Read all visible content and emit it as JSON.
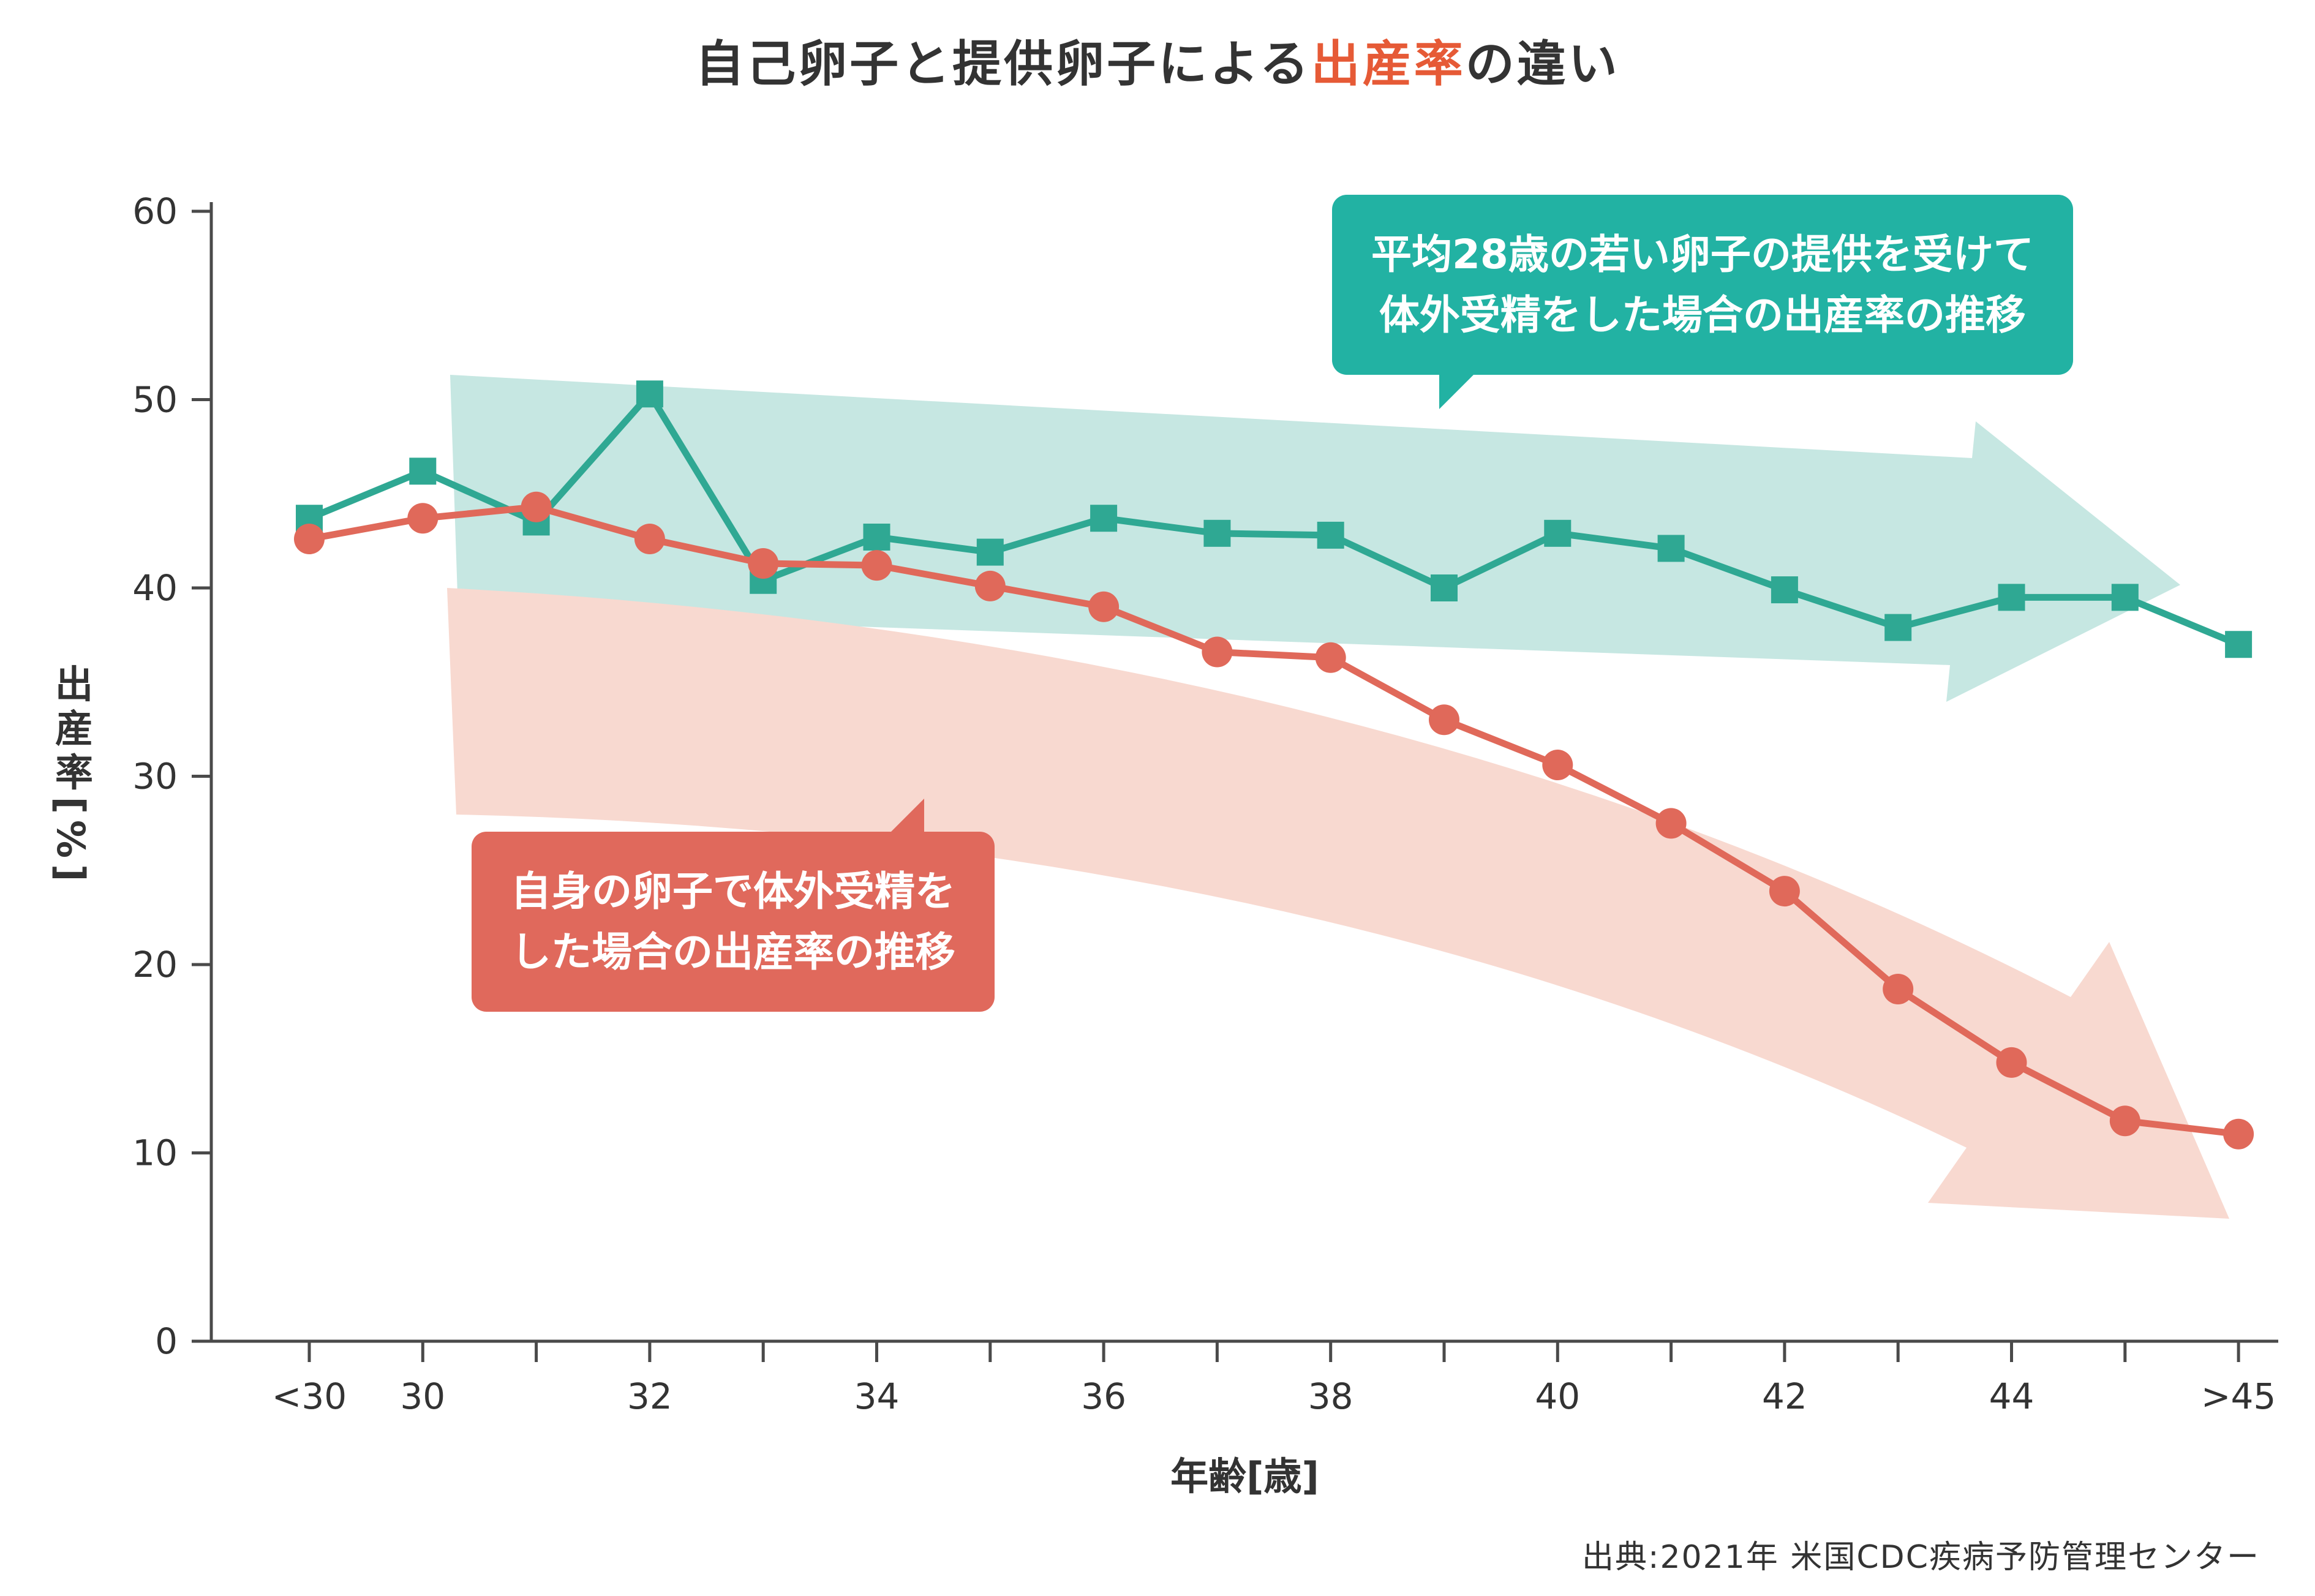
{
  "title": {
    "prefix": "自己卵子と提供卵子による",
    "highlight": "出産率",
    "suffix": "の違い"
  },
  "annotations": {
    "donor": {
      "line1": "平均28歳の若い卵子の提供を受けて",
      "line2": "体外受精をした場合の出産率の推移"
    },
    "own": {
      "line1": "自身の卵子で体外受精を",
      "line2": "した場合の出産率の推移"
    }
  },
  "source": "出典:2021年 米国CDC疾病予防管理センター",
  "colors": {
    "teal_series": "#2fa893",
    "red_series": "#e0695a",
    "teal_bubble": "#22b2a3",
    "red_bubble": "#e0695c",
    "accent_orange": "#e65a36",
    "teal_arrow": "#c6e7e2",
    "pink_arrow": "#f8d9d0",
    "axis": "#4a4a4a",
    "tick_text": "#333333"
  },
  "chart_data": {
    "type": "line",
    "title": "自己卵子と提供卵子による出産率の違い",
    "xlabel": "年齢[歳]",
    "ylabel": "出産率[%]",
    "ylim": [
      0,
      60
    ],
    "yticks": [
      0,
      10,
      20,
      30,
      40,
      50,
      60
    ],
    "grid": false,
    "legend": "none",
    "categories": [
      "<30",
      "30",
      "31",
      "32",
      "33",
      "34",
      "35",
      "36",
      "37",
      "38",
      "39",
      "40",
      "41",
      "42",
      "43",
      "44",
      "45",
      ">45"
    ],
    "x_tick_labels": [
      "<30",
      "30",
      "32",
      "34",
      "36",
      "38",
      "40",
      "42",
      "44",
      ">45"
    ],
    "series": [
      {
        "name": "提供卵子(平均28歳の若い卵子の提供を受けて体外受精をした場合の出産率)",
        "marker": "square",
        "color": "#2fa893",
        "values": [
          43.7,
          46.2,
          43.5,
          50.3,
          40.4,
          42.7,
          41.9,
          43.7,
          42.9,
          42.8,
          40.0,
          42.9,
          42.1,
          39.9,
          37.9,
          39.5,
          39.5,
          37.0
        ]
      },
      {
        "name": "自己卵子(自身の卵子で体外受精をした場合の出産率)",
        "marker": "circle",
        "color": "#e0695a",
        "values": [
          42.6,
          43.7,
          44.3,
          42.6,
          41.3,
          41.2,
          40.1,
          39.0,
          36.6,
          36.3,
          33.0,
          30.6,
          27.5,
          23.9,
          18.7,
          14.8,
          11.7,
          11.0
        ]
      }
    ]
  }
}
